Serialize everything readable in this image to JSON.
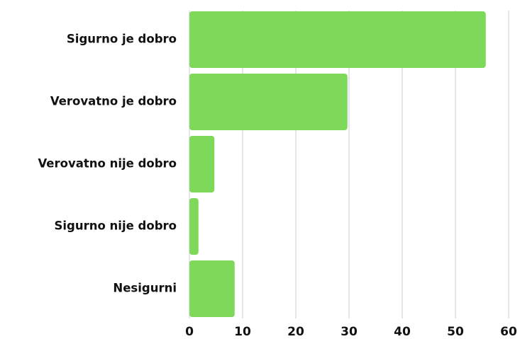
{
  "chart_data": {
    "type": "bar",
    "orientation": "horizontal",
    "categories": [
      "Sigurno je dobro",
      "Verovatno je dobro",
      "Verovatno nije dobro",
      "Sigurno nije dobro",
      "Nesigurni"
    ],
    "values": [
      55.7,
      29.7,
      4.7,
      1.7,
      8.5
    ],
    "color": "#7ed95a",
    "xlim": [
      0,
      60
    ],
    "xticks": [
      0,
      10,
      20,
      30,
      40,
      50,
      60
    ],
    "grid": true
  }
}
